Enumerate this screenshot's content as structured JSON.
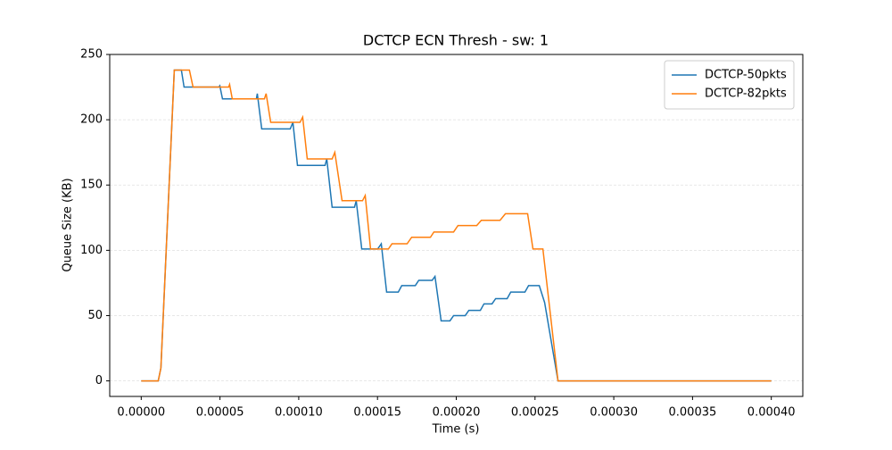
{
  "chart_data": {
    "type": "line",
    "title": "DCTCP ECN Thresh - sw: 1",
    "xlabel": "Time (s)",
    "ylabel": "Queue Size (KB)",
    "xlim": [
      -2e-05,
      0.00042
    ],
    "ylim": [
      -11.9,
      250
    ],
    "xticks": [
      {
        "value": 0,
        "label": "0.00000"
      },
      {
        "value": 5e-05,
        "label": "0.00005"
      },
      {
        "value": 0.0001,
        "label": "0.00010"
      },
      {
        "value": 0.00015,
        "label": "0.00015"
      },
      {
        "value": 0.0002,
        "label": "0.00020"
      },
      {
        "value": 0.00025,
        "label": "0.00025"
      },
      {
        "value": 0.0003,
        "label": "0.00030"
      },
      {
        "value": 0.00035,
        "label": "0.00035"
      },
      {
        "value": 0.0004,
        "label": "0.00040"
      }
    ],
    "yticks": [
      0,
      50,
      100,
      150,
      200,
      250
    ],
    "grid": true,
    "legend": "upper right",
    "series": [
      {
        "name": "DCTCP-50pkts",
        "color": "#1f77b4",
        "x": [
          0,
          1.08e-05,
          1.25e-05,
          2.1e-05,
          2.55e-05,
          2.72e-05,
          4.93e-05,
          4.99e-05,
          5.16e-05,
          7.31e-05,
          7.37e-05,
          7.65e-05,
          9.46e-05,
          9.63e-05,
          9.92e-05,
          0.0001167,
          0.0001178,
          0.0001212,
          0.0001354,
          0.0001365,
          0.00014,
          0.0001501,
          0.0001524,
          0.0001558,
          0.0001632,
          0.0001654,
          0.000174,
          0.0001762,
          0.0001847,
          0.0001865,
          0.0001904,
          0.000196,
          0.0001983,
          0.0002057,
          0.000208,
          0.0002153,
          0.0002176,
          0.0002227,
          0.000225,
          0.0002323,
          0.0002346,
          0.0002436,
          0.0002459,
          0.0002527,
          0.0002561,
          0.0002646,
          0.0004
        ],
        "values": [
          0,
          0,
          10,
          238,
          238,
          225,
          225,
          226,
          216,
          216,
          220,
          193,
          193,
          198,
          165,
          165,
          170,
          133,
          133,
          138,
          101,
          101,
          105,
          68,
          68,
          73,
          73,
          77,
          77,
          80,
          46,
          46,
          50,
          50,
          54,
          54,
          59,
          59,
          63,
          63,
          68,
          68,
          73,
          73,
          60,
          0,
          0
        ]
      },
      {
        "name": "DCTCP-82pkts",
        "color": "#ff7f0e",
        "x": [
          0,
          1.08e-05,
          1.25e-05,
          2.1e-05,
          3.06e-05,
          3.29e-05,
          5.55e-05,
          5.61e-05,
          5.78e-05,
          7.82e-05,
          7.93e-05,
          8.22e-05,
          0.0001008,
          0.0001025,
          0.0001054,
          0.0001212,
          0.0001229,
          0.0001275,
          0.0001405,
          0.0001422,
          0.0001456,
          0.0001569,
          0.0001592,
          0.0001688,
          0.0001717,
          0.0001836,
          0.0001858,
          0.0001983,
          0.0002011,
          0.000213,
          0.0002159,
          0.0002278,
          0.0002312,
          0.0002453,
          0.0002487,
          0.000255,
          0.0002646,
          0.0004
        ],
        "values": [
          0,
          0,
          10,
          238,
          238,
          225,
          225,
          227,
          216,
          216,
          220,
          198,
          198,
          202,
          170,
          170,
          175,
          138,
          138,
          142,
          101,
          101,
          105,
          105,
          110,
          110,
          114,
          114,
          119,
          119,
          123,
          123,
          128,
          128,
          101,
          101,
          0,
          0
        ]
      }
    ]
  }
}
